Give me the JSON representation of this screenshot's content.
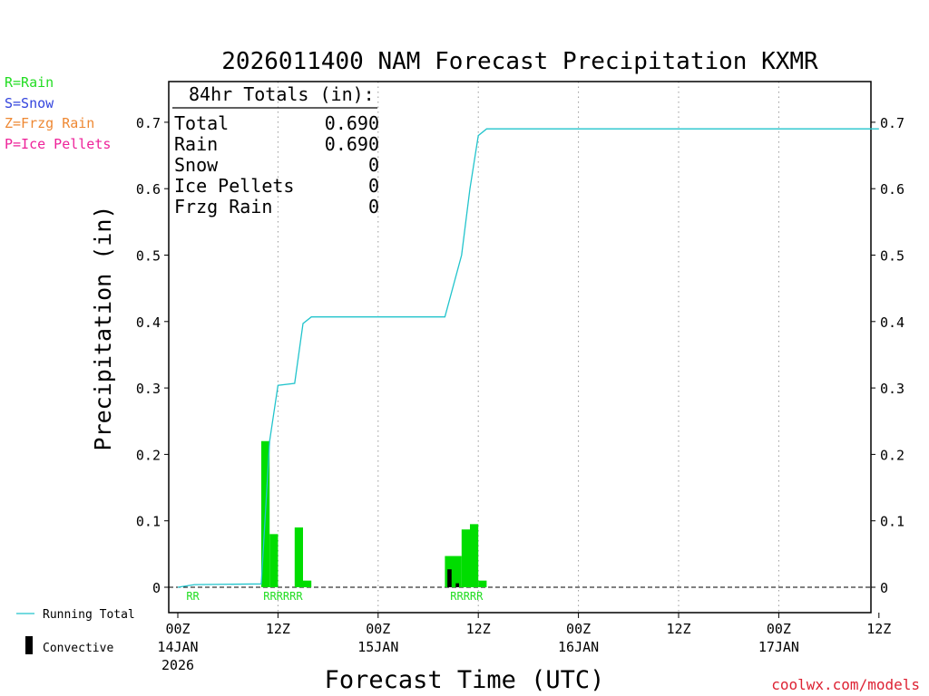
{
  "chart_data": {
    "type": "bar",
    "title": "2026011400 NAM Forecast Precipitation KXMR",
    "xlabel": "Forecast Time (UTC)",
    "ylabel": "Precipitation (in)",
    "x_unit": "forecast hour",
    "xlim": [
      0,
      84
    ],
    "ylim": [
      0,
      0.75
    ],
    "y_ticks": [
      {
        "v": 0,
        "label": "0"
      },
      {
        "v": 0.1,
        "label": "0.1"
      },
      {
        "v": 0.2,
        "label": "0.2"
      },
      {
        "v": 0.3,
        "label": "0.3"
      },
      {
        "v": 0.4,
        "label": "0.4"
      },
      {
        "v": 0.5,
        "label": "0.5"
      },
      {
        "v": 0.6,
        "label": "0.6"
      },
      {
        "v": 0.7,
        "label": "0.7"
      }
    ],
    "x_ticks": [
      {
        "h": 0,
        "label": "00Z",
        "day": "14JAN",
        "year": "2026"
      },
      {
        "h": 12,
        "label": "12Z"
      },
      {
        "h": 24,
        "label": "00Z",
        "day": "15JAN"
      },
      {
        "h": 36,
        "label": "12Z"
      },
      {
        "h": 48,
        "label": "00Z",
        "day": "16JAN"
      },
      {
        "h": 60,
        "label": "12Z"
      },
      {
        "h": 72,
        "label": "00Z",
        "day": "17JAN"
      },
      {
        "h": 84,
        "label": "12Z"
      }
    ],
    "legend": {
      "rain": {
        "text": "R=Rain",
        "color": "#22dd22"
      },
      "snow": {
        "text": "S=Snow",
        "color": "#3344dd"
      },
      "zr": {
        "text": "Z=Frzg Rain",
        "color": "#ee8833"
      },
      "ip": {
        "text": "P=Ice Pellets",
        "color": "#ee2299"
      },
      "running": "Running Total",
      "convective": "Convective"
    },
    "totals": {
      "header": "84hr Totals (in):",
      "rows": [
        {
          "label": "Total",
          "value": "0.690"
        },
        {
          "label": "Rain",
          "value": "0.690"
        },
        {
          "label": "Snow",
          "value": "0"
        },
        {
          "label": "Ice Pellets",
          "value": "0"
        },
        {
          "label": "Frzg Rain",
          "value": "0"
        }
      ]
    },
    "series": [
      {
        "name": "Precipitation (Rain)",
        "type": "bar",
        "color": "#00dd00",
        "bars": [
          {
            "h0": 10,
            "h1": 11,
            "value": 0.22
          },
          {
            "h0": 11,
            "h1": 12,
            "value": 0.08
          },
          {
            "h0": 14,
            "h1": 15,
            "value": 0.09
          },
          {
            "h0": 15,
            "h1": 16,
            "value": 0.01
          },
          {
            "h0": 32,
            "h1": 34,
            "value": 0.047
          },
          {
            "h0": 34,
            "h1": 35,
            "value": 0.087
          },
          {
            "h0": 35,
            "h1": 36,
            "value": 0.095
          },
          {
            "h0": 36,
            "h1": 37,
            "value": 0.01
          }
        ]
      },
      {
        "name": "Convective",
        "type": "bar",
        "color": "#000000",
        "bars": [
          {
            "h0": 32.3,
            "h1": 32.8,
            "value": 0.027
          },
          {
            "h0": 33.3,
            "h1": 33.7,
            "value": 0.006
          }
        ]
      },
      {
        "name": "Running Total",
        "type": "line",
        "color": "#22c4cc",
        "points": [
          [
            0,
            0
          ],
          [
            2,
            0.004
          ],
          [
            10,
            0.005
          ],
          [
            11,
            0.22
          ],
          [
            12,
            0.304
          ],
          [
            14,
            0.307
          ],
          [
            15,
            0.397
          ],
          [
            16,
            0.407
          ],
          [
            23,
            0.407
          ],
          [
            32,
            0.407
          ],
          [
            34,
            0.5
          ],
          [
            35,
            0.6
          ],
          [
            36,
            0.68
          ],
          [
            37,
            0.69
          ],
          [
            84,
            0.69
          ]
        ]
      }
    ],
    "ptype_markers": [
      {
        "text": "RR",
        "h": 1.8
      },
      {
        "text": "RRRRRR",
        "h": 12.6
      },
      {
        "text": "RRRRR",
        "h": 34.6
      }
    ]
  },
  "credit": "coolwx.com/models"
}
